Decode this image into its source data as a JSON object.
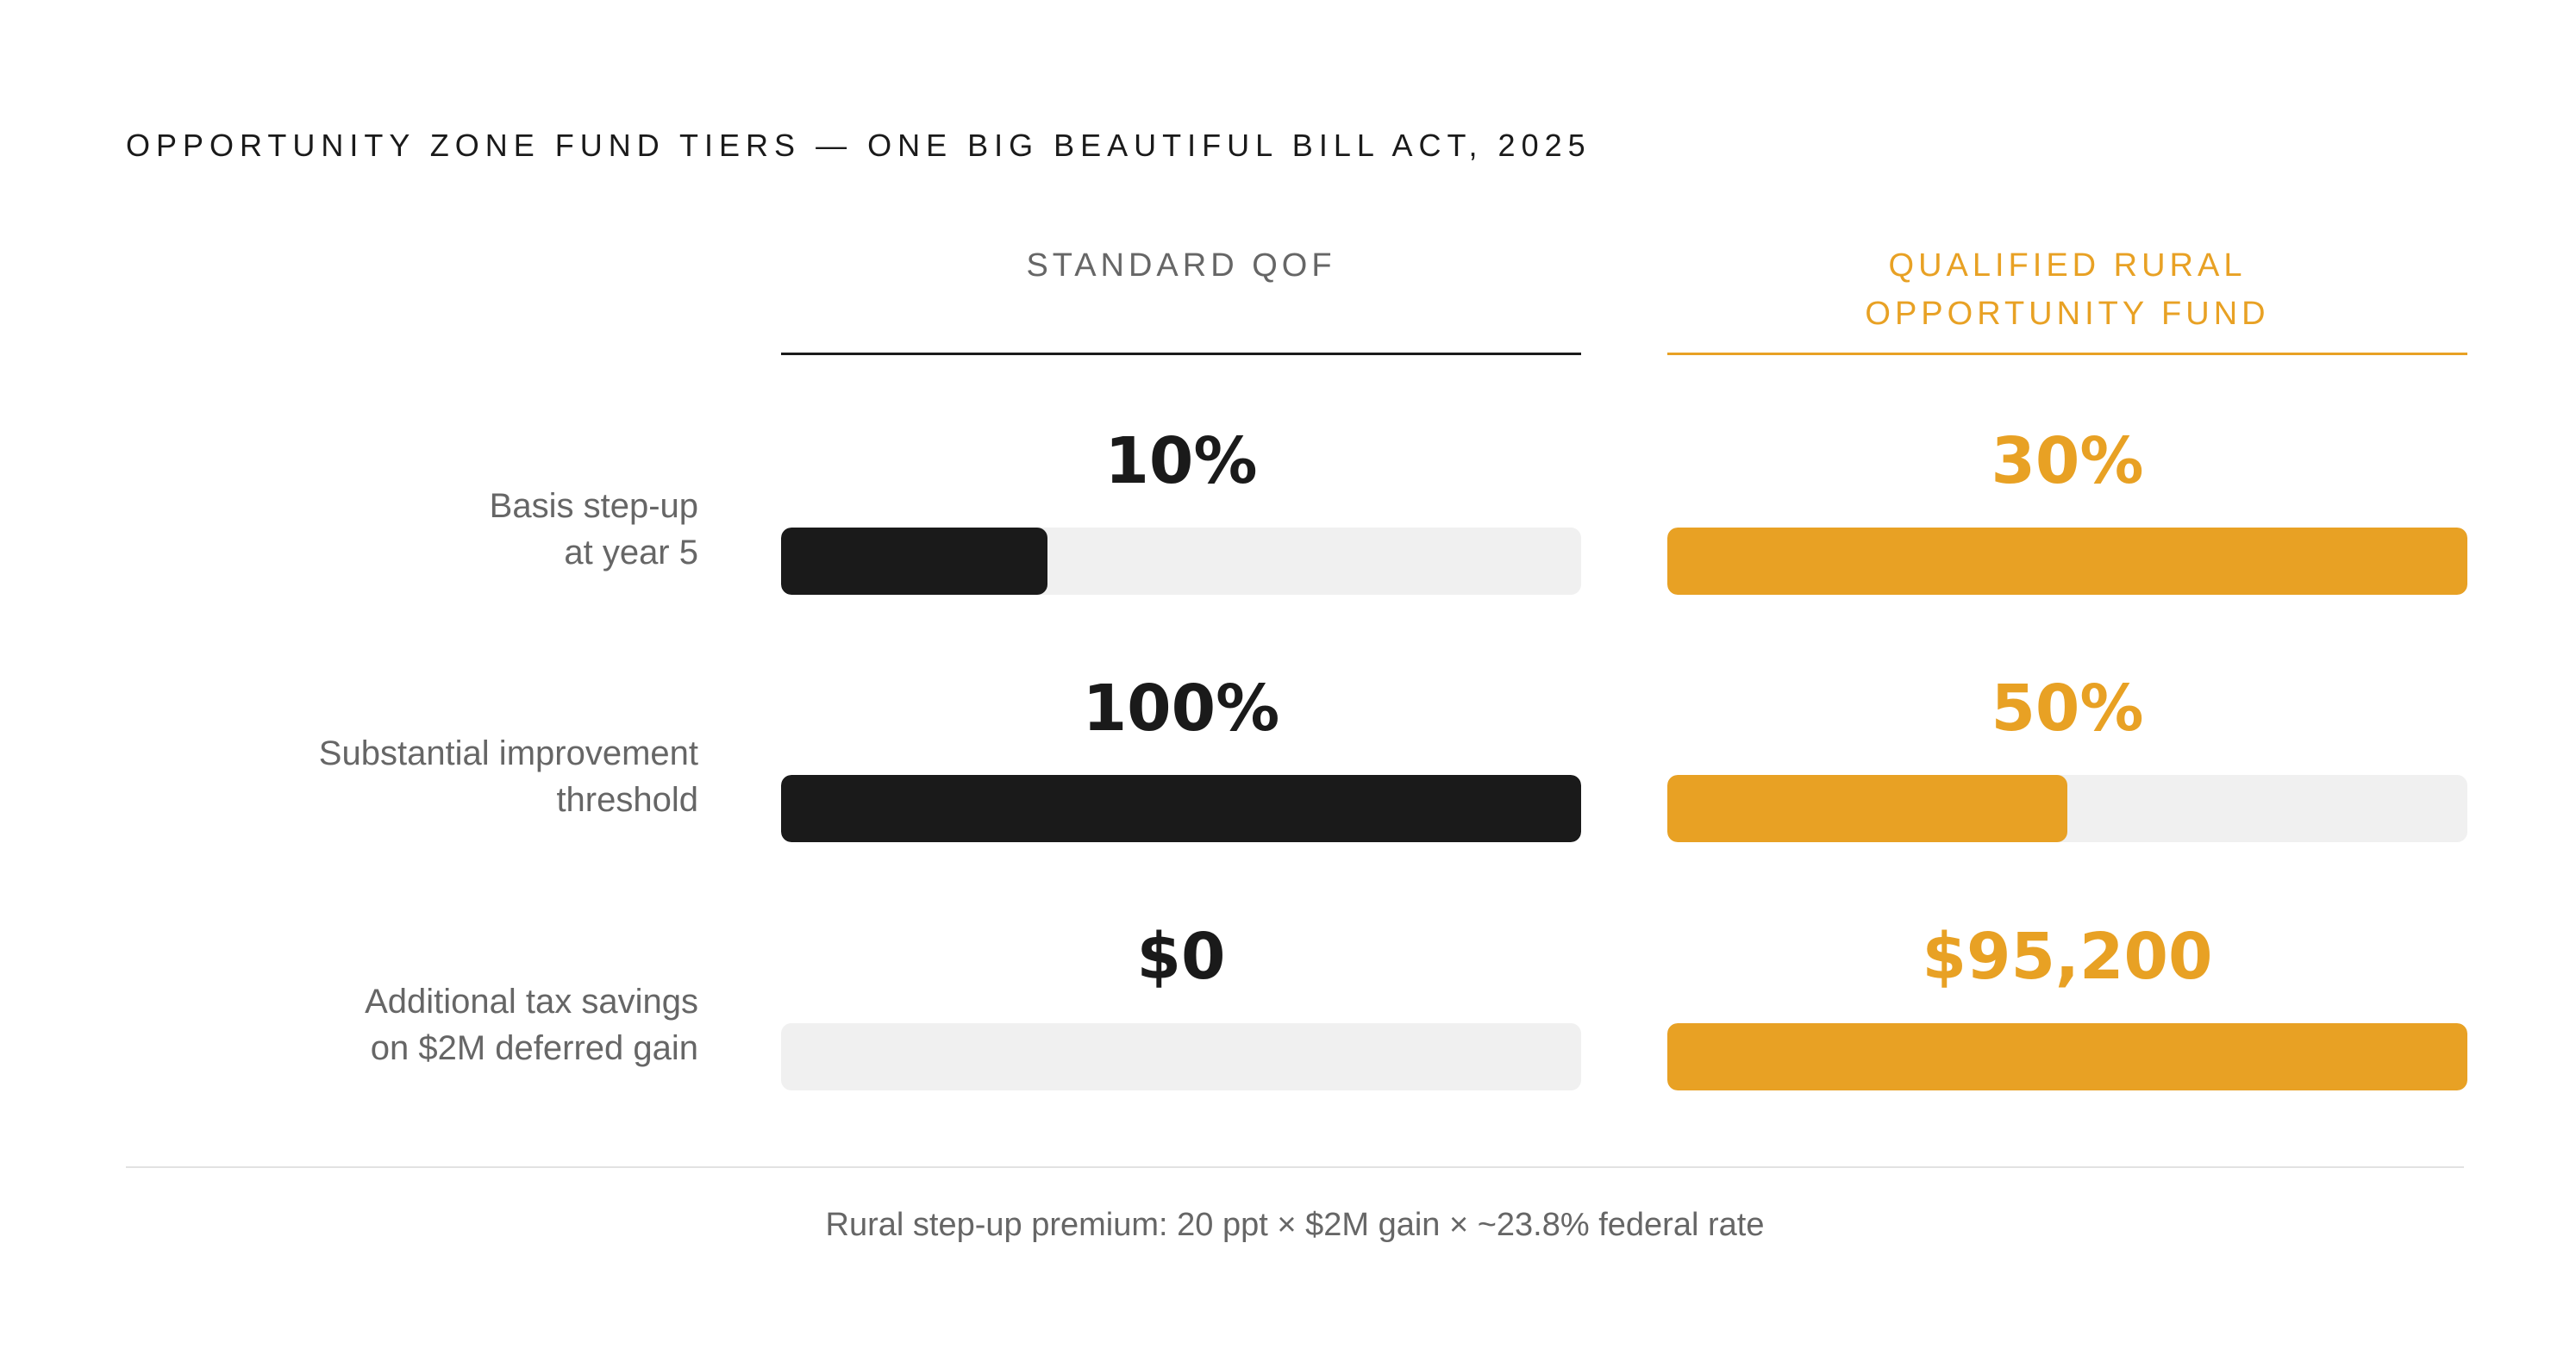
{
  "title": "OPPORTUNITY ZONE FUND TIERS — ONE BIG BEAUTIFUL BILL ACT, 2025",
  "colors": {
    "standard": "#1a1a1a",
    "rural": "#e8a124",
    "track": "#f0f0f0",
    "label": "#666666"
  },
  "footnote": "Rural step-up premium: 20 ppt × $2M gain × ~23.8% federal rate",
  "chart_data": {
    "type": "bar",
    "title": "OPPORTUNITY ZONE FUND TIERS — ONE BIG BEAUTIFUL BILL ACT, 2025",
    "columns": [
      {
        "key": "standard",
        "label": "STANDARD QOF"
      },
      {
        "key": "rural",
        "label": "QUALIFIED RURAL OPPORTUNITY FUND",
        "label_lines": [
          "QUALIFIED RURAL",
          "OPPORTUNITY FUND"
        ]
      }
    ],
    "rows": [
      {
        "label_lines": [
          "Basis step-up",
          "at year 5"
        ],
        "standard": {
          "display": "10%",
          "fill": 0.3333
        },
        "rural": {
          "display": "30%",
          "fill": 1.0
        }
      },
      {
        "label_lines": [
          "Substantial improvement",
          "threshold"
        ],
        "standard": {
          "display": "100%",
          "fill": 1.0
        },
        "rural": {
          "display": "50%",
          "fill": 0.5
        }
      },
      {
        "label_lines": [
          "Additional tax savings",
          "on $2M deferred gain"
        ],
        "standard": {
          "display": "$0",
          "fill": 0.0
        },
        "rural": {
          "display": "$95,200",
          "fill": 1.0
        }
      }
    ]
  }
}
